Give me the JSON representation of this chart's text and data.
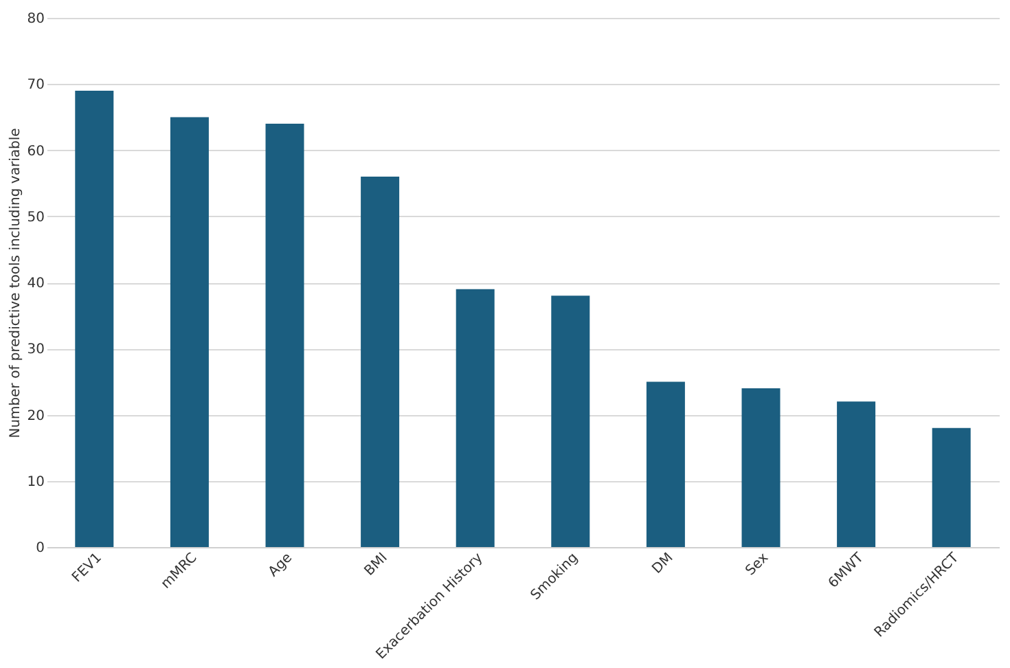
{
  "chart_data": {
    "type": "bar",
    "ylabel": "Number of predictive tools including variable",
    "categories": [
      "FEV1",
      "mMRC",
      "Age",
      "BMI",
      "Exacerbation History",
      "Smoking",
      "DM",
      "Sex",
      "6MWT",
      "Radiomics/HRCT"
    ],
    "values": [
      69,
      65,
      64,
      56,
      39,
      38,
      25,
      24,
      22,
      18
    ],
    "color": "#1b5e80",
    "ylim": [
      0,
      80
    ],
    "yticks": [
      0,
      10,
      20,
      30,
      40,
      50,
      60,
      70,
      80
    ],
    "grid": "y"
  }
}
